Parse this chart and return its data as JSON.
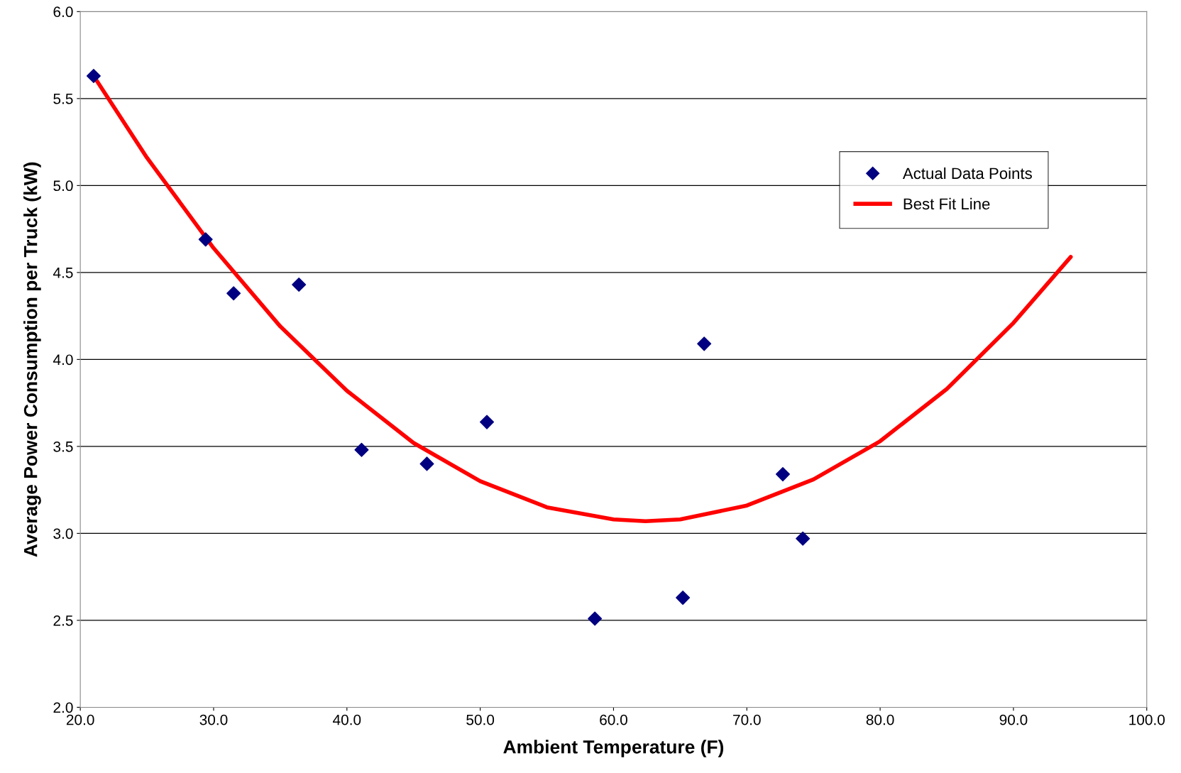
{
  "chart_data": {
    "type": "scatter",
    "xlabel": "Ambient Temperature (F)",
    "ylabel": "Average Power Consumption per Truck (kW)",
    "xlim": [
      20,
      100
    ],
    "xticks": [
      {
        "value": 20,
        "label": "20.0"
      },
      {
        "value": 30,
        "label": "30.0"
      },
      {
        "value": 40,
        "label": "40.0"
      },
      {
        "value": 50,
        "label": "50.0"
      },
      {
        "value": 60,
        "label": "60.0"
      },
      {
        "value": 70,
        "label": "70.0"
      },
      {
        "value": 80,
        "label": "80.0"
      },
      {
        "value": 90,
        "label": "90.0"
      },
      {
        "value": 100,
        "label": "100.0"
      }
    ],
    "ylim": [
      2,
      6
    ],
    "yticks": [
      {
        "value": 2,
        "label": "2.0"
      },
      {
        "value": 2.5,
        "label": "2.5"
      },
      {
        "value": 3,
        "label": "3.0"
      },
      {
        "value": 3.5,
        "label": "3.5"
      },
      {
        "value": 4,
        "label": "4.0"
      },
      {
        "value": 4.5,
        "label": "4.5"
      },
      {
        "value": 5,
        "label": "5.0"
      },
      {
        "value": 5.5,
        "label": "5.5"
      },
      {
        "value": 6,
        "label": "6.0"
      }
    ],
    "grid": "y",
    "legend": "top right",
    "series": [
      {
        "name": "Actual Data Points",
        "marker": "diamond",
        "color": "#000080",
        "x": [
          21.0,
          29.4,
          31.5,
          36.4,
          41.1,
          46.0,
          50.5,
          58.6,
          65.2,
          66.8,
          72.7,
          74.2
        ],
        "values": [
          5.63,
          4.69,
          4.38,
          4.43,
          3.48,
          3.4,
          3.64,
          2.51,
          2.63,
          4.09,
          3.34,
          2.97
        ]
      },
      {
        "name": "Best Fit Line",
        "type": "line",
        "marker": "none",
        "line_style": "solid",
        "color": "#ff0000",
        "x": [
          21,
          25,
          30,
          35,
          40,
          45,
          50,
          55,
          60,
          62.4,
          65,
          70,
          75,
          80,
          85,
          90,
          94.3
        ],
        "values": [
          5.63,
          5.16,
          4.64,
          4.19,
          3.82,
          3.52,
          3.3,
          3.15,
          3.08,
          3.07,
          3.08,
          3.16,
          3.31,
          3.53,
          3.83,
          4.21,
          4.59
        ]
      }
    ]
  }
}
